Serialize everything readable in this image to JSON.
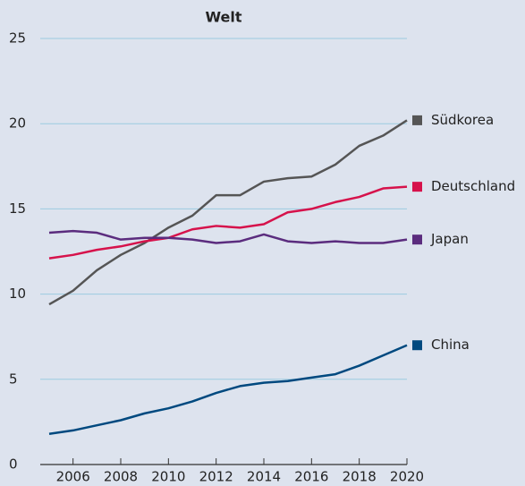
{
  "chart_data": {
    "type": "line",
    "title": "Welt",
    "x": [
      2005,
      2006,
      2007,
      2008,
      2009,
      2010,
      2011,
      2012,
      2013,
      2014,
      2015,
      2016,
      2017,
      2018,
      2019,
      2020
    ],
    "xlim": [
      2005,
      2020
    ],
    "xticks": [
      2006,
      2008,
      2010,
      2012,
      2014,
      2016,
      2018,
      2020
    ],
    "ylim": [
      0,
      25
    ],
    "yticks": [
      0,
      5,
      10,
      15,
      20,
      25
    ],
    "grid": true,
    "series": [
      {
        "name": "Südkorea",
        "color": "#555555",
        "values": [
          9.4,
          10.2,
          11.4,
          12.3,
          13.0,
          13.9,
          14.6,
          15.8,
          15.8,
          16.6,
          16.8,
          16.9,
          17.6,
          18.7,
          19.3,
          20.2
        ]
      },
      {
        "name": "Deutschland",
        "color": "#d6124b",
        "values": [
          12.1,
          12.3,
          12.6,
          12.8,
          13.1,
          13.3,
          13.8,
          14.0,
          13.9,
          14.1,
          14.8,
          15.0,
          15.4,
          15.7,
          16.2,
          16.3
        ]
      },
      {
        "name": "Japan",
        "color": "#5b2c7e",
        "values": [
          13.6,
          13.7,
          13.6,
          13.2,
          13.3,
          13.3,
          13.2,
          13.0,
          13.1,
          13.5,
          13.1,
          13.0,
          13.1,
          13.0,
          13.0,
          13.2
        ]
      },
      {
        "name": "China",
        "color": "#00497f",
        "values": [
          1.8,
          2.0,
          2.3,
          2.6,
          3.0,
          3.3,
          3.7,
          4.2,
          4.6,
          4.8,
          4.9,
          5.1,
          5.3,
          5.8,
          6.4,
          7.0
        ]
      }
    ]
  }
}
